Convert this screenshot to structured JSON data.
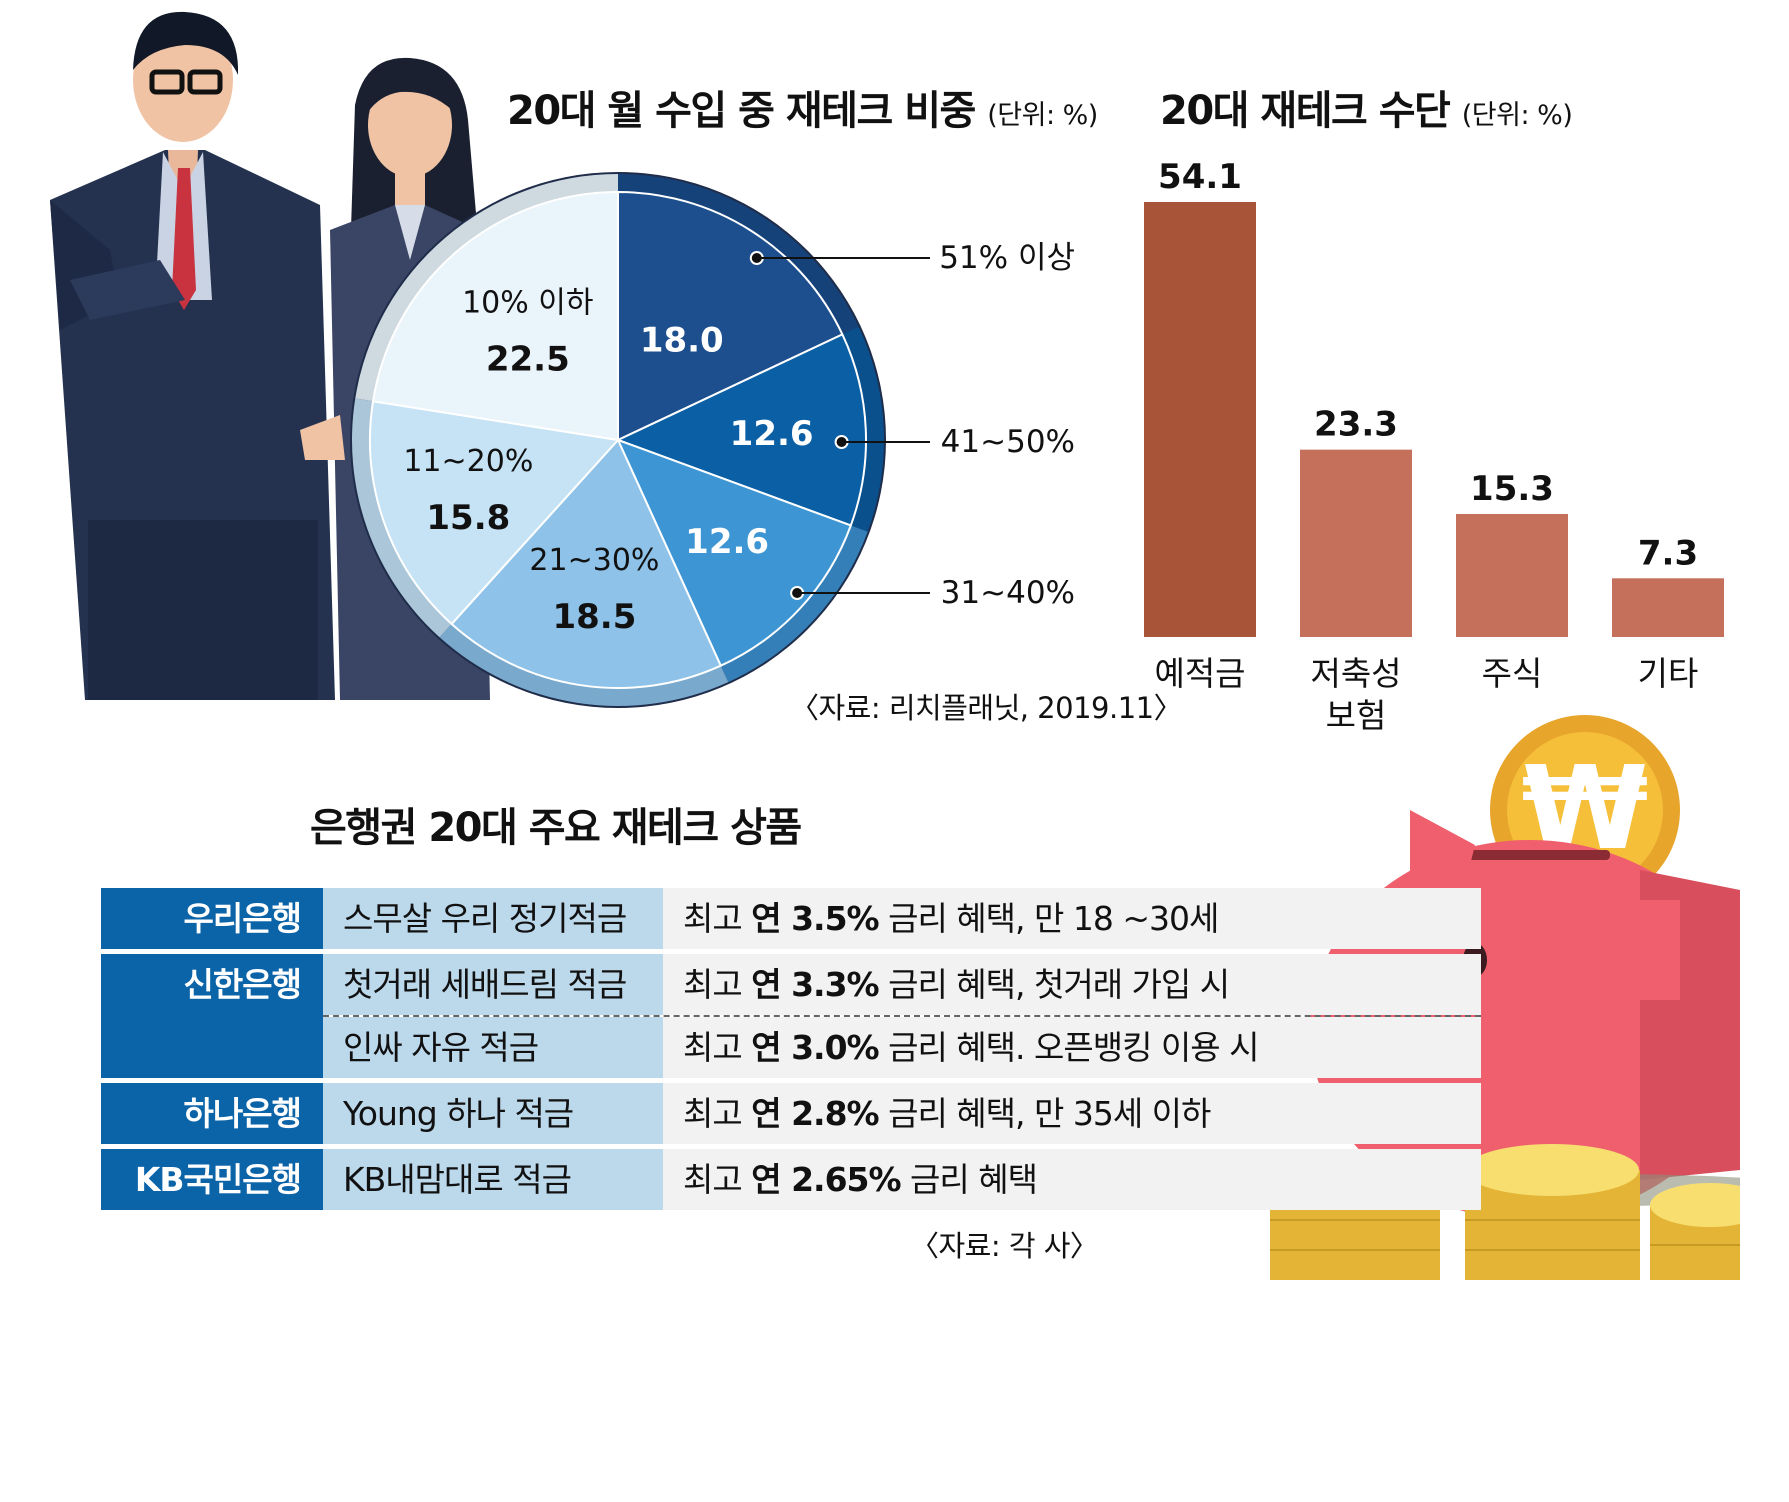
{
  "pie": {
    "title": "20대 월 수입 중 재테크 비중",
    "unit": "(단위: %)",
    "source": "〈자료: 리치플래닛, 2019.11〉"
  },
  "bar": {
    "title": "20대 재테크 수단",
    "unit": "(단위: %)"
  },
  "chart_data": [
    {
      "type": "pie",
      "title": "20대 월 수입 중 재테크 비중",
      "unit": "%",
      "slices": [
        {
          "label": "51% 이상",
          "value": 18.0,
          "value_label": "18.0",
          "color": "#1d4f8e"
        },
        {
          "label": "41~50%",
          "value": 12.6,
          "value_label": "12.6",
          "color": "#0b5fa5"
        },
        {
          "label": "31~40%",
          "value": 12.6,
          "value_label": "12.6",
          "color": "#3d95d3"
        },
        {
          "label": "21~30%",
          "value": 18.5,
          "value_label": "18.5",
          "color": "#8ec2e8"
        },
        {
          "label": "11~20%",
          "value": 15.8,
          "value_label": "15.8",
          "color": "#c5e3f5"
        },
        {
          "label": "10% 이하",
          "value": 22.5,
          "value_label": "22.5",
          "color": "#eaf4fb"
        }
      ]
    },
    {
      "type": "bar",
      "title": "20대 재테크 수단",
      "unit": "%",
      "categories": [
        "예적금",
        "저축성\n보험",
        "주식",
        "기타"
      ],
      "values": [
        54.1,
        23.3,
        15.3,
        7.3
      ],
      "value_labels": [
        "54.1",
        "23.3",
        "15.3",
        "7.3"
      ],
      "colors": [
        "#a85438",
        "#c5705a",
        "#c5705a",
        "#c5705a"
      ]
    }
  ],
  "table": {
    "title": "은행권 20대 주요 재테크 상품",
    "source": "〈자료: 각 사〉",
    "rows": [
      {
        "bank": "우리은행",
        "items": [
          {
            "product": "스무살 우리 정기적금",
            "pre": "최고 ",
            "bold": "연 3.5%",
            "post": " 금리 혜택, 만 18 ~30세"
          }
        ]
      },
      {
        "bank": "신한은행",
        "items": [
          {
            "product": "첫거래 세배드림 적금",
            "pre": "최고 ",
            "bold": "연 3.3%",
            "post": " 금리 혜택, 첫거래 가입 시"
          },
          {
            "product": "인싸 자유 적금",
            "pre": "최고 ",
            "bold": "연 3.0%",
            "post": " 금리 혜택. 오픈뱅킹 이용 시"
          }
        ]
      },
      {
        "bank": "하나은행",
        "items": [
          {
            "product": "Young 하나 적금",
            "pre": "최고 ",
            "bold": "연 2.8%",
            "post": " 금리 혜택, 만 35세 이하"
          }
        ]
      },
      {
        "bank": "KB국민은행",
        "items": [
          {
            "product": "KB내맘대로 적금",
            "pre": "최고 ",
            "bold": "연 2.65%",
            "post": " 금리 혜택"
          }
        ]
      }
    ]
  },
  "icons": {
    "coin_symbol": "₩"
  }
}
